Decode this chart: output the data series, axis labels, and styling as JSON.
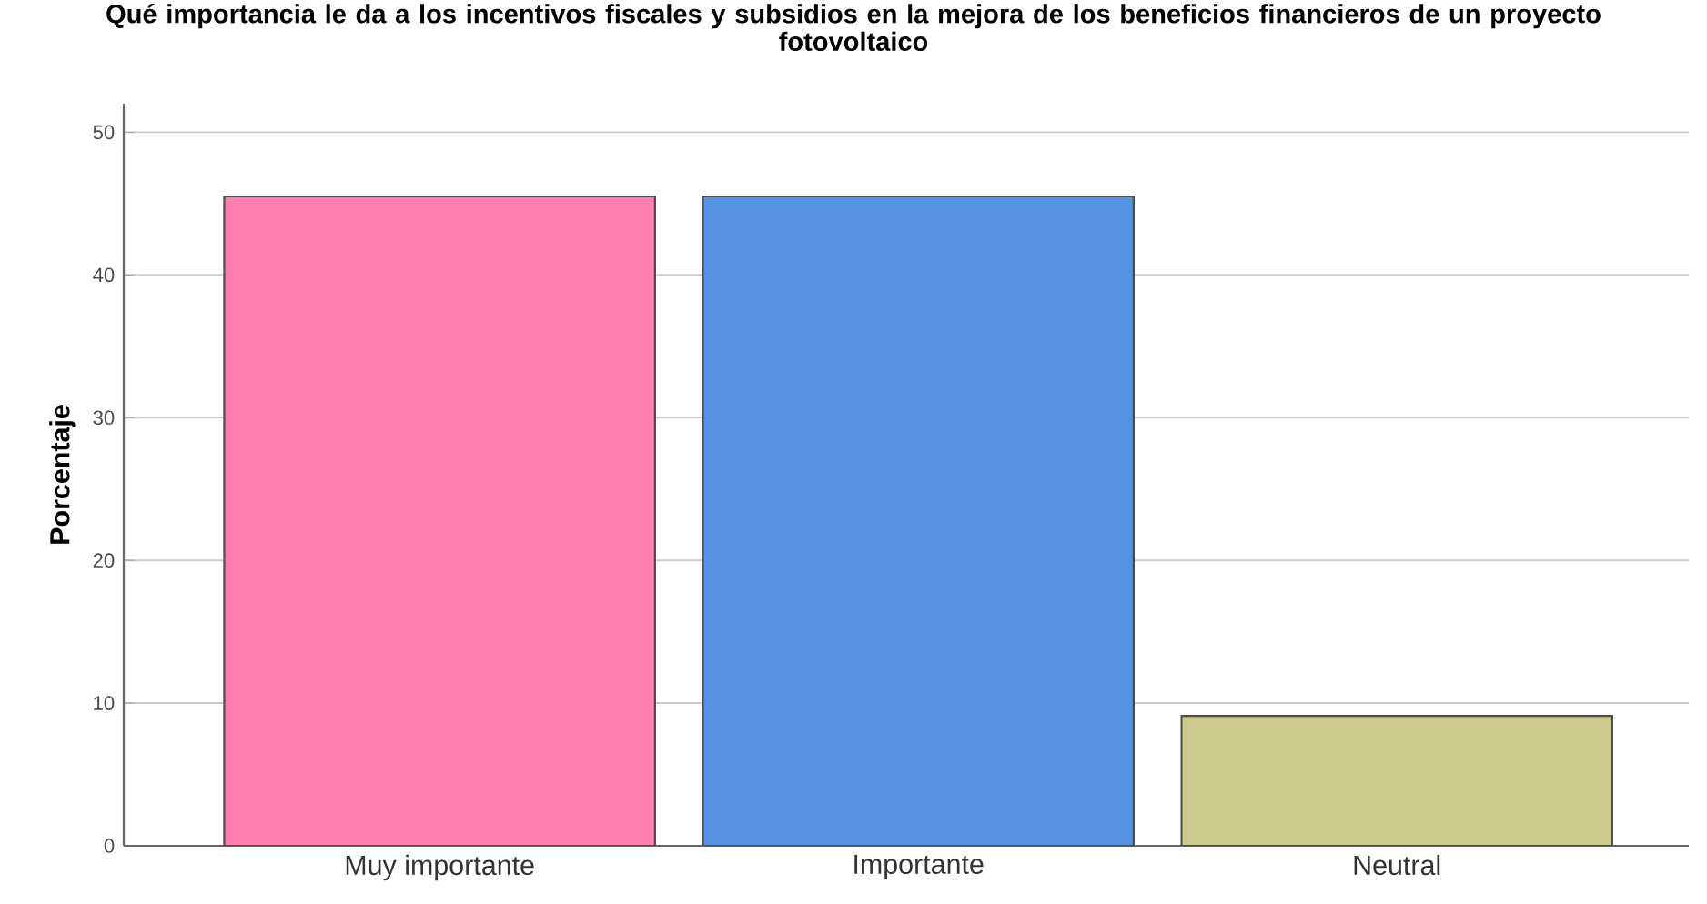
{
  "chart_data": {
    "type": "bar",
    "title": "Qué importancia le da a los incentivos fiscales y subsidios en la mejora de los beneficios financieros de un proyecto fotovoltaico",
    "ylabel": "Porcentaje",
    "categories": [
      "Muy importante",
      "Importante",
      "Neutral"
    ],
    "values": [
      45.5,
      45.5,
      9.1
    ],
    "colors": [
      "#fc7fb0",
      "#5592e2",
      "#cdc98c"
    ],
    "ylim": [
      0,
      52
    ],
    "yticks": [
      0,
      10,
      20,
      30,
      40,
      50
    ],
    "grid": "y"
  }
}
